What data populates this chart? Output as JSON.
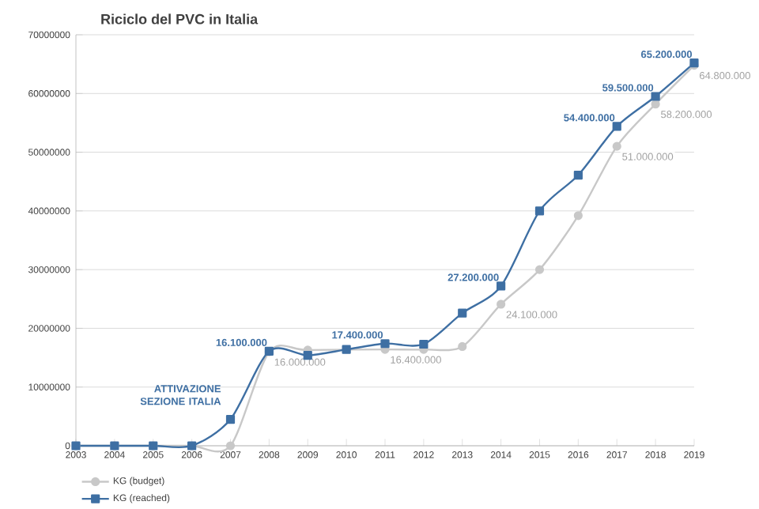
{
  "chart_data": {
    "type": "line",
    "title": "Riciclo del PVC in Italia",
    "categories": [
      "2003",
      "2004",
      "2005",
      "2006",
      "2007",
      "2008",
      "2009",
      "2010",
      "2011",
      "2012",
      "2013",
      "2014",
      "2015",
      "2016",
      "2017",
      "2018",
      "2019"
    ],
    "series": [
      {
        "name": "KG (budget)",
        "color": "#c8c8c8",
        "marker": "circle",
        "values": [
          0,
          0,
          0,
          0,
          0,
          16000000,
          16300000,
          null,
          16400000,
          16400000,
          16900000,
          24100000,
          30000000,
          39200000,
          51000000,
          58200000,
          64800000
        ],
        "value_labels": [
          null,
          null,
          null,
          null,
          null,
          "16.000.000",
          null,
          null,
          "16.400.000",
          null,
          null,
          "24.100.000",
          null,
          null,
          "51.000.000",
          "58.200.000",
          "64.800.000"
        ]
      },
      {
        "name": "KG (reached)",
        "color": "#3e6fa3",
        "marker": "square",
        "values": [
          0,
          0,
          0,
          0,
          4500000,
          16100000,
          15400000,
          16400000,
          17400000,
          17300000,
          22600000,
          27200000,
          40000000,
          46100000,
          54400000,
          59500000,
          65200000
        ],
        "value_labels": [
          null,
          null,
          null,
          null,
          null,
          "16.100.000",
          null,
          null,
          "17.400.000",
          null,
          null,
          "27.200.000",
          null,
          null,
          "54.400.000",
          "59.500.000",
          "65.200.000"
        ]
      }
    ],
    "ylim": [
      0,
      70000000
    ],
    "yticks": [
      0,
      10000000,
      20000000,
      30000000,
      40000000,
      50000000,
      60000000,
      70000000
    ],
    "grid": "y",
    "legend": "bottom left",
    "annotations": [
      "ATTIVAZIONE SEZIONE ITALIA"
    ]
  }
}
